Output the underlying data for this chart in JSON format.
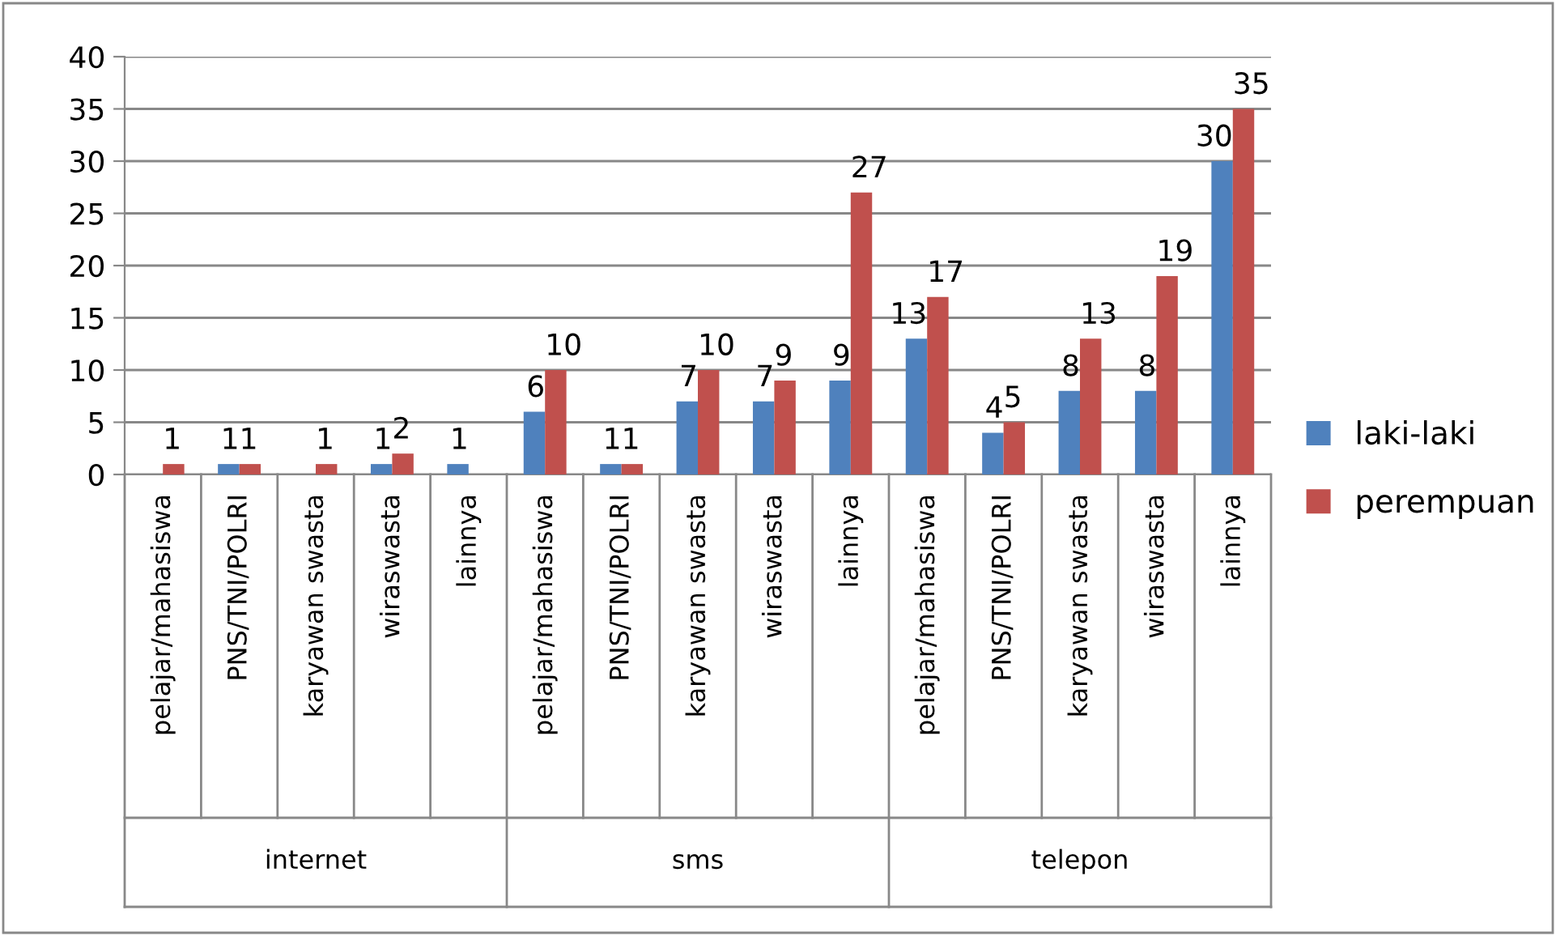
{
  "chart_data": {
    "type": "bar",
    "categories": [
      "pelajar/mahasiswa",
      "PNS/TNI/POLRI",
      "karyawan swasta",
      "wiraswasta",
      "lainnya",
      "pelajar/mahasiswa",
      "PNS/TNI/POLRI",
      "karyawan swasta",
      "wiraswasta",
      "lainnya",
      "pelajar/mahasiswa",
      "PNS/TNI/POLRI",
      "karyawan swasta",
      "wiraswasta",
      "lainnya"
    ],
    "series": [
      {
        "name": "laki-laki",
        "color": "#4f81bd",
        "values": [
          null,
          1,
          null,
          1,
          1,
          6,
          1,
          7,
          7,
          9,
          13,
          4,
          8,
          8,
          30
        ]
      },
      {
        "name": "perempuan",
        "color": "#c0504d",
        "values": [
          1,
          1,
          1,
          2,
          null,
          10,
          1,
          10,
          9,
          27,
          17,
          5,
          13,
          19,
          35
        ]
      }
    ],
    "annotations": [
      "internet",
      "sms",
      "telepon"
    ],
    "ylim": [
      0,
      40
    ],
    "yticks": [
      0,
      5,
      10,
      15,
      20,
      25,
      30,
      35,
      40
    ],
    "grid": "y",
    "legend": "right",
    "data_labels": true
  }
}
